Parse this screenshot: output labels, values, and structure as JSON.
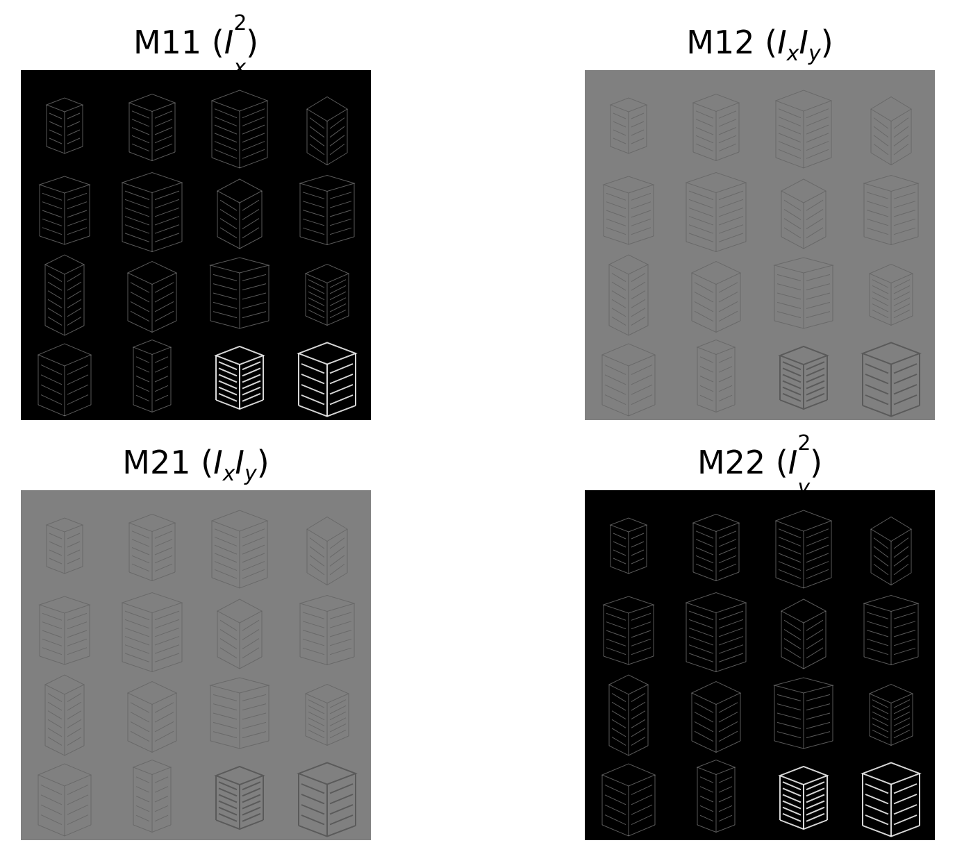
{
  "figure": {
    "panels": [
      {
        "id": "m11",
        "name_prefix": "M11",
        "math_base": "I",
        "math_sup": "2",
        "math_sub": "x",
        "second_base": "",
        "second_sub": "",
        "background": "#000000",
        "edge_color": "#ffffff",
        "edge_opacity": 0.35
      },
      {
        "id": "m12",
        "name_prefix": "M12",
        "math_base": "I",
        "math_sup": "",
        "math_sub": "x",
        "second_base": "I",
        "second_sub": "y",
        "background": "#808080",
        "edge_color": "#5a5a5a",
        "edge_opacity": 0.6
      },
      {
        "id": "m21",
        "name_prefix": "M21",
        "math_base": "I",
        "math_sup": "",
        "math_sub": "x",
        "second_base": "I",
        "second_sub": "y",
        "background": "#808080",
        "edge_color": "#5a5a5a",
        "edge_opacity": 0.6
      },
      {
        "id": "m22",
        "name_prefix": "M22",
        "math_base": "I",
        "math_sup": "2",
        "math_sub": "y",
        "second_base": "",
        "second_sub": "",
        "background": "#000000",
        "edge_color": "#ffffff",
        "edge_opacity": 0.35
      }
    ]
  }
}
